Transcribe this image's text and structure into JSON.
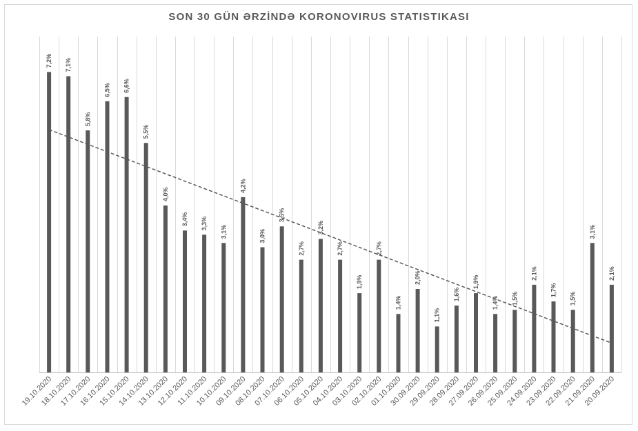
{
  "chart_data": {
    "type": "bar",
    "title": "SON 30 GÜN ƏRZİNDƏ KORONOVIRUS STATISTIKASI",
    "xlabel": "",
    "ylabel": "",
    "ylim": [
      0,
      8
    ],
    "grid": "vertical",
    "legend": "none",
    "trendline": "linear",
    "bar_color": "#595959",
    "categories": [
      "19.10.2020",
      "18.10.2020",
      "17.10.2020",
      "16.10.2020",
      "15.10.2020",
      "14.10.2020",
      "13.10.2020",
      "12.10.2020",
      "11.10.2020",
      "10.10.2020",
      "09.10.2020",
      "08.10.2020",
      "07.10.2020",
      "06.10.2020",
      "05.10.2020",
      "04.10.2020",
      "03.10.2020",
      "02.10.2020",
      "01.10.2020",
      "30.09.2020",
      "29.09.2020",
      "28.09.2020",
      "27.09.2020",
      "26.09.2020",
      "25.09.2020",
      "24.09.2020",
      "23.09.2020",
      "22.09.2020",
      "21.09.2020",
      "20.09.2020"
    ],
    "values": [
      7.2,
      7.1,
      5.8,
      6.5,
      6.6,
      5.5,
      4.0,
      3.4,
      3.3,
      3.1,
      4.2,
      3.0,
      3.5,
      2.7,
      3.2,
      2.7,
      1.9,
      2.7,
      1.4,
      2.0,
      1.1,
      1.6,
      1.9,
      1.4,
      1.5,
      2.1,
      1.7,
      1.5,
      3.1,
      2.1
    ],
    "data_labels": [
      "7,2%",
      "7,1%",
      "5,8%",
      "6,5%",
      "6,6%",
      "5,5%",
      "4,0%",
      "3,4%",
      "3,3%",
      "3,1%",
      "4,2%",
      "3,0%",
      "3,5%",
      "2,7%",
      "3,2%",
      "2,7%",
      "1,9%",
      "2,7%",
      "1,4%",
      "2,0%",
      "1,1%",
      "1,6%",
      "1,9%",
      "1,4%",
      "1,5%",
      "2,1%",
      "1,7%",
      "1,5%",
      "3,1%",
      "2,1%"
    ]
  }
}
